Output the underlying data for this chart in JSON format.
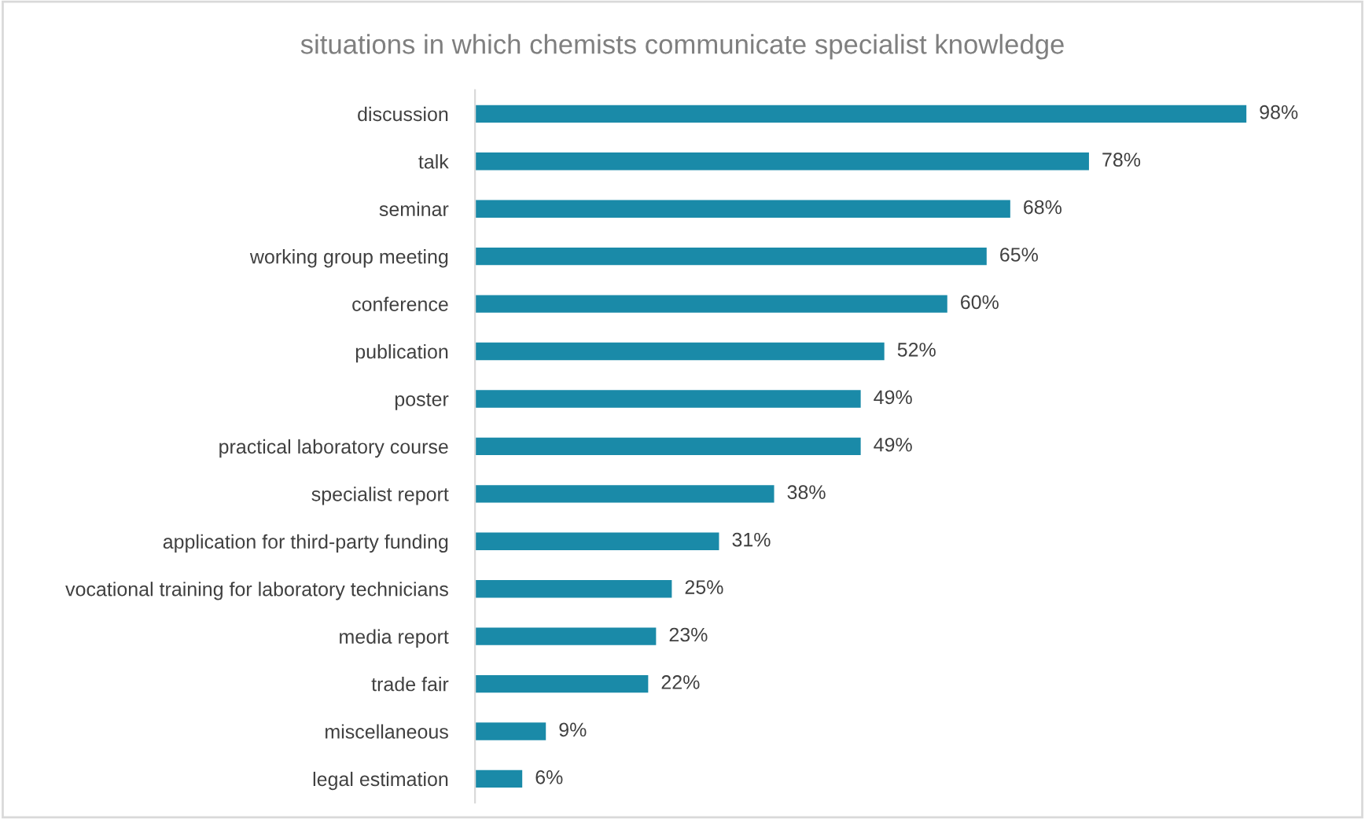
{
  "chart_data": {
    "type": "bar",
    "orientation": "horizontal",
    "title": "situations in which chemists communicate specialist knowledge",
    "categories": [
      "discussion",
      "talk",
      "seminar",
      "working group meeting",
      "conference",
      "publication",
      "poster",
      "practical laboratory course",
      "specialist report",
      "application for third-party funding",
      "vocational training for laboratory technicians",
      "media report",
      "trade fair",
      "miscellaneous",
      "legal estimation"
    ],
    "values": [
      98,
      78,
      68,
      65,
      60,
      52,
      49,
      49,
      38,
      31,
      25,
      23,
      22,
      9,
      6
    ],
    "value_labels": [
      "98%",
      "78%",
      "68%",
      "65%",
      "60%",
      "52%",
      "49%",
      "49%",
      "38%",
      "31%",
      "25%",
      "23%",
      "22%",
      "9%",
      "6%"
    ],
    "color": "#1a8aa8",
    "tick_labels": "y",
    "grid": false,
    "legend": false
  }
}
